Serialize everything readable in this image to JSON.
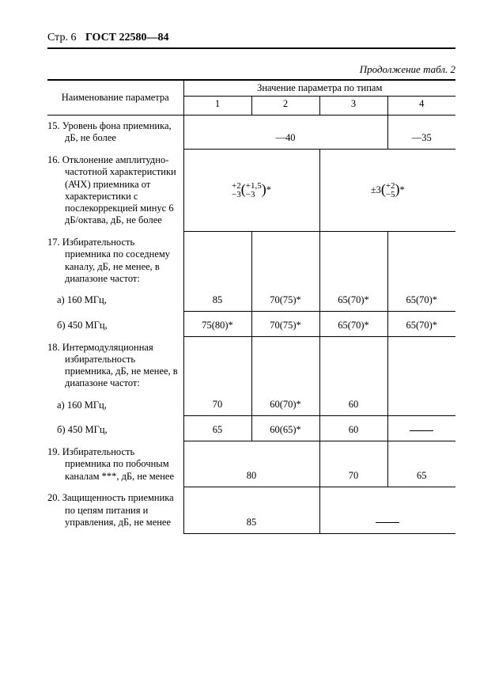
{
  "header": {
    "page_label": "Стр. 6",
    "standard": "ГОСТ 22580—84"
  },
  "caption": "Продолжение табл. 2",
  "head": {
    "param": "Наименование параметра",
    "valhead": "Значение параметра по типам",
    "cols": [
      "1",
      "2",
      "3",
      "4"
    ]
  },
  "rows": {
    "r15": {
      "label": "15. Уровень фона приемника, дБ, не более",
      "v_a": "—40",
      "v_b": "—35"
    },
    "r16": {
      "label": "16. Отклонение амплитудно-частотной характеристики (АЧХ) приемника от характеристики с послекоррекцией минус 6 дБ/октава, дБ, не более",
      "leftTop": "+2",
      "leftBot": "−3",
      "leftParenTop": "+1,5",
      "leftParenBot": "−3",
      "leftStar": "*",
      "rightPM": "±3",
      "rightParenTop": "+2",
      "rightParenBot": "−5",
      "rightStar": "*"
    },
    "r17": {
      "label": "17. Избирательность приемника по соседнему каналу, дБ, не менее, в диапазоне частот:",
      "a_label": "а)  160 МГц,",
      "a": [
        "85",
        "70(75)*",
        "65(70)*",
        "65(70)*"
      ],
      "b_label": "б)  450 МГц,",
      "b": [
        "75(80)*",
        "70(75)*",
        "65(70)*",
        "65(70)*"
      ]
    },
    "r18": {
      "label": "18.   Интермодуляционная избирательность приемника, дБ, не менее, в диапазоне частот:",
      "a_label": "а)  160 МГц,",
      "a": [
        "70",
        "60(70)*",
        "60",
        ""
      ],
      "b_label": "б)  450 МГц,",
      "b": [
        "65",
        "60(65)*",
        "60",
        "—"
      ]
    },
    "r19": {
      "label": "19. Избирательность приемника по побочным каналам ***, дБ, не менее",
      "v1": "80",
      "v2": "70",
      "v3": "65"
    },
    "r20": {
      "label": "20.  Защищенность приемника по цепям питания и управления, дБ, не менее",
      "v1": "85",
      "v2": "—"
    }
  }
}
